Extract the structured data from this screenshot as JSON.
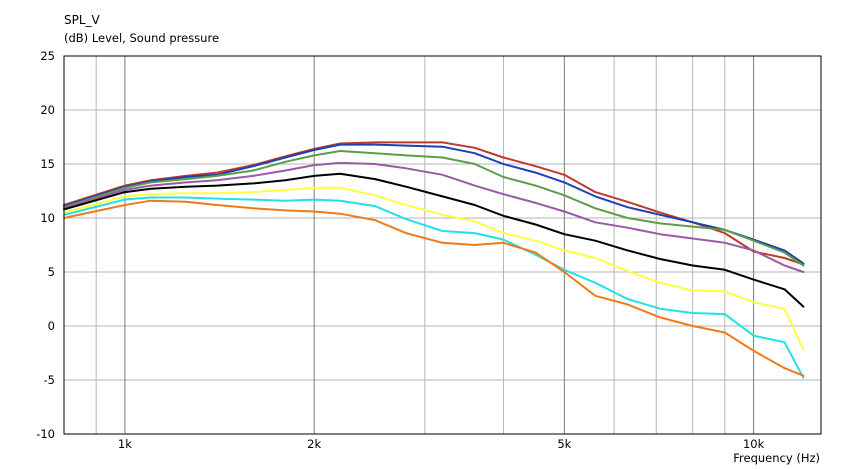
{
  "chart_data": {
    "type": "line",
    "title": "SPL_V",
    "ylabel": "(dB)  Level, Sound pressure",
    "xlabel": "Frequency  (Hz)",
    "x_scale": "log",
    "xlim": [
      800,
      12800
    ],
    "ylim": [
      -10,
      25
    ],
    "grid": true,
    "y_ticks": [
      25,
      20,
      15,
      10,
      5,
      0,
      -5,
      -10
    ],
    "y_tick_labels": [
      "25",
      "20",
      "15",
      "10",
      "5",
      "0",
      "-5",
      "-10"
    ],
    "x_ticks": [
      1000,
      2000,
      5000,
      10000
    ],
    "x_tick_labels": [
      "1k",
      "2k",
      "5k",
      "10k"
    ],
    "x": [
      800,
      1000,
      1100,
      1250,
      1400,
      1600,
      1800,
      2000,
      2200,
      2500,
      2800,
      3200,
      3600,
      4000,
      4500,
      5000,
      5600,
      6300,
      7100,
      8000,
      9000,
      10000,
      11200,
      12000
    ],
    "series": [
      {
        "color": "#c0392b",
        "values": [
          11.2,
          13.0,
          13.5,
          13.9,
          14.2,
          14.9,
          15.7,
          16.4,
          16.9,
          17.0,
          17.0,
          17.0,
          16.5,
          15.6,
          14.8,
          14.0,
          12.4,
          11.5,
          10.5,
          9.6,
          8.6,
          6.9,
          6.3,
          5.7
        ]
      },
      {
        "color": "#1f3fb4",
        "values": [
          11.1,
          12.9,
          13.4,
          13.8,
          14.0,
          14.8,
          15.6,
          16.3,
          16.8,
          16.8,
          16.7,
          16.6,
          16.0,
          15.0,
          14.2,
          13.3,
          12.0,
          11.0,
          10.3,
          9.6,
          8.9,
          8.0,
          7.0,
          5.8
        ]
      },
      {
        "color": "#5a9e4b",
        "values": [
          11.0,
          12.8,
          13.3,
          13.6,
          13.9,
          14.4,
          15.2,
          15.8,
          16.2,
          16.0,
          15.8,
          15.6,
          15.0,
          13.8,
          13.0,
          12.1,
          10.9,
          10.0,
          9.5,
          9.2,
          8.9,
          7.9,
          6.8,
          5.6
        ]
      },
      {
        "color": "#9b59a6",
        "values": [
          10.9,
          12.6,
          13.0,
          13.3,
          13.5,
          13.9,
          14.4,
          14.9,
          15.1,
          15.0,
          14.6,
          14.0,
          13.0,
          12.2,
          11.4,
          10.6,
          9.6,
          9.1,
          8.5,
          8.1,
          7.7,
          7.0,
          5.6,
          5.0
        ]
      },
      {
        "color": "#000000",
        "values": [
          10.8,
          12.4,
          12.7,
          12.9,
          13.0,
          13.2,
          13.5,
          13.9,
          14.1,
          13.6,
          12.9,
          12.0,
          11.2,
          10.2,
          9.4,
          8.5,
          7.9,
          7.0,
          6.2,
          5.6,
          5.2,
          4.3,
          3.4,
          1.8
        ]
      },
      {
        "color": "#ffff44",
        "values": [
          10.5,
          12.0,
          12.2,
          12.3,
          12.3,
          12.4,
          12.6,
          12.8,
          12.8,
          12.1,
          11.2,
          10.3,
          9.7,
          8.6,
          7.9,
          7.0,
          6.3,
          5.1,
          4.0,
          3.3,
          3.2,
          2.2,
          1.6,
          -2.2
        ]
      },
      {
        "color": "#22e0e8",
        "values": [
          10.3,
          11.7,
          11.9,
          11.9,
          11.8,
          11.7,
          11.6,
          11.7,
          11.6,
          11.1,
          9.9,
          8.8,
          8.6,
          8.0,
          6.6,
          5.2,
          4.0,
          2.5,
          1.6,
          1.2,
          1.1,
          -0.9,
          -1.5,
          -4.8
        ]
      },
      {
        "color": "#f07a1a",
        "values": [
          10.0,
          11.2,
          11.6,
          11.5,
          11.2,
          10.9,
          10.7,
          10.6,
          10.4,
          9.8,
          8.6,
          7.7,
          7.5,
          7.7,
          6.8,
          5.0,
          2.8,
          2.0,
          0.8,
          0.0,
          -0.6,
          -2.3,
          -3.9,
          -4.6
        ]
      }
    ]
  }
}
